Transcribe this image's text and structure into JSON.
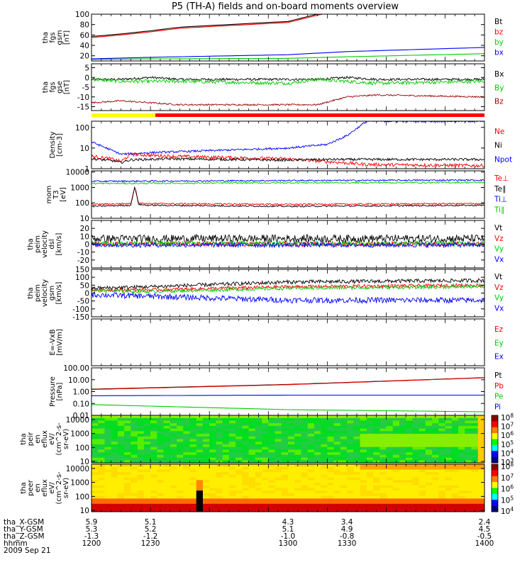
{
  "chart_data": {
    "type": "line",
    "title": "P5 (TH-A) fields and on-board moments overview",
    "panels": [
      {
        "id": "fgs_gsm",
        "ylabel": [
          "tha",
          "fgs",
          "gsm",
          "[nT]"
        ],
        "yscale": "linear",
        "ylim": [
          10,
          100
        ],
        "ticks": [
          "100",
          "80",
          "60",
          "40",
          "20"
        ],
        "tickvals": [
          100,
          80,
          60,
          40,
          20
        ],
        "series": [
          {
            "name": "Bt",
            "color": "#000000",
            "kind": "curve",
            "x": [
              1200,
              1215,
              1230,
              1245,
              1300,
              1315,
              1330
            ],
            "y": [
              57,
              62,
              68,
              75,
              86,
              100,
              112
            ]
          },
          {
            "name": "bz",
            "color": "#ff0000",
            "kind": "curve",
            "x": [
              1200,
              1215,
              1230,
              1245,
              1300,
              1315,
              1330
            ],
            "y": [
              55,
              60,
              66,
              73,
              84,
              98,
              110
            ]
          },
          {
            "name": "by",
            "color": "#00cc00",
            "kind": "curve",
            "x": [
              1200,
              1230,
              1300,
              1330,
              1400
            ],
            "y": [
              13,
              14,
              15,
              18,
              24
            ]
          },
          {
            "name": "bx",
            "color": "#0000ff",
            "kind": "curve",
            "x": [
              1200,
              1230,
              1300,
              1330,
              1400
            ],
            "y": [
              14,
              17,
              22,
              28,
              36
            ]
          }
        ]
      },
      {
        "id": "fgs_gse",
        "ylabel": [
          "tha",
          "fgs",
          "gse",
          "[nT]"
        ],
        "yscale": "linear",
        "ylim": [
          -17,
          7
        ],
        "ticks": [
          "5",
          "0",
          "-5",
          "-10",
          "-15"
        ],
        "tickvals": [
          5,
          0,
          -5,
          -10,
          -15
        ],
        "series": [
          {
            "name": "Bx",
            "color": "#000000",
            "kind": "noisy",
            "x": [
              1200,
              1215,
              1230,
              1245,
              1300,
              1315,
              1330,
              1345,
              1400
            ],
            "y": [
              -1,
              -1,
              0,
              -1,
              -1,
              -1,
              0,
              -1,
              -1
            ],
            "noise": 0.6
          },
          {
            "name": "By",
            "color": "#00cc00",
            "kind": "noisy",
            "x": [
              1200,
              1215,
              1230,
              1245,
              1300,
              1315,
              1330,
              1345,
              1400
            ],
            "y": [
              -1,
              -2,
              -2,
              -2,
              -3,
              -1,
              -2,
              -3,
              -2
            ],
            "noise": 0.9
          },
          {
            "name": "Bz",
            "color": "#990000",
            "kind": "noisy",
            "x": [
              1200,
              1215,
              1230,
              1245,
              1300,
              1315,
              1330,
              1345,
              1400
            ],
            "y": [
              -13,
              -12,
              -13,
              -14,
              -14,
              -14,
              -10,
              -9,
              -10
            ],
            "noise": 0.4
          }
        ]
      },
      {
        "id": "density",
        "ylabel": [
          "Density",
          "[cm-3]"
        ],
        "yscale": "log",
        "ylim": [
          1,
          200
        ],
        "ticks": [
          "100",
          "10",
          "1"
        ],
        "tickvals": [
          100,
          10,
          1
        ],
        "series": [
          {
            "name": "Ne",
            "color": "#ff0000",
            "kind": "noisy",
            "x": [
              1200,
              1210,
              1215,
              1220,
              1240,
              1300,
              1320,
              1340,
              1400
            ],
            "y": [
              4,
              3,
              2.2,
              5,
              4,
              3,
              2.2,
              1.6,
              1.4
            ],
            "noise": 0.08
          },
          {
            "name": "Ni",
            "color": "#000000",
            "kind": "noisy",
            "x": [
              1200,
              1210,
              1215,
              1220,
              1240,
              1300,
              1320,
              1340,
              1400
            ],
            "y": [
              3,
              2.5,
              2,
              2.7,
              3,
              2.6,
              2.8,
              2.8,
              2.8
            ],
            "noise": 0.06
          },
          {
            "name": "Npot",
            "color": "#0000ff",
            "kind": "noisy",
            "x": [
              1200,
              1210,
              1215,
              1230,
              1300,
              1320,
              1330,
              1340,
              1350,
              1400
            ],
            "y": [
              20,
              8,
              5,
              6,
              10,
              15,
              40,
              200,
              200,
              200
            ],
            "noise": 0.05
          }
        ]
      },
      {
        "id": "mom_temp",
        "ylabel": [
          "mom",
          "T3",
          "[eV]"
        ],
        "yscale": "log",
        "ylim": [
          10,
          12000
        ],
        "ticks": [
          "10000",
          "1000",
          "100",
          "10"
        ],
        "tickvals": [
          10000,
          1000,
          100,
          10
        ],
        "series": [
          {
            "name": "Te⊥",
            "color": "#ff0000",
            "kind": "noisy",
            "x": [
              1200,
              1220,
              1222,
              1224,
              1228,
              1300,
              1400
            ],
            "y": [
              80,
              90,
              1200,
              100,
              90,
              80,
              90
            ],
            "noise": 0.05
          },
          {
            "name": "Te∥",
            "color": "#000000",
            "kind": "noisy",
            "x": [
              1200,
              1220,
              1222,
              1224,
              1228,
              1300,
              1400
            ],
            "y": [
              60,
              70,
              1100,
              80,
              70,
              60,
              70
            ],
            "noise": 0.05
          },
          {
            "name": "Ti⊥",
            "color": "#0000ff",
            "kind": "noisy",
            "x": [
              1200,
              1300,
              1400
            ],
            "y": [
              2500,
              2800,
              3000
            ],
            "noise": 0.05
          },
          {
            "name": "Ti∥",
            "color": "#00cc00",
            "kind": "noisy",
            "x": [
              1200,
              1300,
              1400
            ],
            "y": [
              1800,
              2000,
              2100
            ],
            "noise": 0.05
          }
        ]
      },
      {
        "id": "peim_vel_dsl",
        "ylabel": [
          "tha",
          "peim",
          "velocity",
          "dsl",
          "[km/s]"
        ],
        "yscale": "linear",
        "ylim": [
          -30,
          30
        ],
        "ticks": [
          "20",
          "10",
          "0",
          "-10",
          "-20"
        ],
        "tickvals": [
          20,
          10,
          0,
          -10,
          -20
        ],
        "series": [
          {
            "name": "Vt",
            "color": "#000000",
            "kind": "noisy",
            "x": [
              1200,
              1400
            ],
            "y": [
              7,
              7
            ],
            "noise": 5
          },
          {
            "name": "Vz",
            "color": "#ff0000",
            "kind": "noisy",
            "x": [
              1200,
              1400
            ],
            "y": [
              0,
              0
            ],
            "noise": 3
          },
          {
            "name": "Vy",
            "color": "#00cc00",
            "kind": "noisy",
            "x": [
              1200,
              1400
            ],
            "y": [
              1,
              1
            ],
            "noise": 3
          },
          {
            "name": "Vx",
            "color": "#0000ff",
            "kind": "noisy",
            "x": [
              1200,
              1400
            ],
            "y": [
              -1,
              -1
            ],
            "noise": 3
          }
        ]
      },
      {
        "id": "peim_vel_gsm",
        "ylabel": [
          "tha",
          "peim",
          "velocity",
          "gsm",
          "[km/s]"
        ],
        "yscale": "linear",
        "ylim": [
          -150,
          150
        ],
        "ticks": [
          "150",
          "100",
          "50",
          "0",
          "-50",
          "-100",
          "-150"
        ],
        "tickvals": [
          150,
          100,
          50,
          0,
          -50,
          -100,
          -150
        ],
        "series": [
          {
            "name": "Vt",
            "color": "#000000",
            "kind": "noisy",
            "x": [
              1200,
              1230,
              1300,
              1400
            ],
            "y": [
              30,
              40,
              70,
              80
            ],
            "noise": 12
          },
          {
            "name": "Vz",
            "color": "#ff0000",
            "kind": "noisy",
            "x": [
              1200,
              1230,
              1300,
              1400
            ],
            "y": [
              20,
              20,
              40,
              50
            ],
            "noise": 10
          },
          {
            "name": "Vy",
            "color": "#00cc00",
            "kind": "noisy",
            "x": [
              1200,
              1230,
              1300,
              1400
            ],
            "y": [
              15,
              10,
              30,
              40
            ],
            "noise": 10
          },
          {
            "name": "Vx",
            "color": "#0000ff",
            "kind": "noisy",
            "x": [
              1200,
              1230,
              1300,
              1400
            ],
            "y": [
              -10,
              -20,
              -45,
              -45
            ],
            "noise": 18
          }
        ]
      },
      {
        "id": "e_vxb",
        "ylabel": [
          "E=-VxB",
          "[mV/m]"
        ],
        "yscale": "linear",
        "ylim": [
          0,
          1
        ],
        "ticks": [],
        "tickvals": [],
        "series": [
          {
            "name": "Ez",
            "color": "#ff0000",
            "kind": "none"
          },
          {
            "name": "Ey",
            "color": "#00cc00",
            "kind": "none"
          },
          {
            "name": "Ex",
            "color": "#0000ff",
            "kind": "none"
          }
        ]
      },
      {
        "id": "pressure",
        "ylabel": [
          "Pressure",
          "[nPa]"
        ],
        "yscale": "log",
        "ylim": [
          0.01,
          100
        ],
        "ticks": [
          "100.00",
          "10.00",
          "1.00",
          "0.10",
          "0.01"
        ],
        "tickvals": [
          100,
          10,
          1,
          0.1,
          0.01
        ],
        "series": [
          {
            "name": "Pt",
            "color": "#000000",
            "kind": "curve",
            "x": [
              1200,
              1300,
              1400
            ],
            "y": [
              1.6,
              4,
              15
            ]
          },
          {
            "name": "Pb",
            "color": "#ff0000",
            "kind": "curve",
            "x": [
              1200,
              1300,
              1400
            ],
            "y": [
              1.5,
              3.8,
              14.5
            ]
          },
          {
            "name": "Pe",
            "color": "#00cc00",
            "kind": "curve",
            "x": [
              1200,
              1300,
              1400
            ],
            "y": [
              0.08,
              0.03,
              0.02
            ]
          },
          {
            "name": "Pi",
            "color": "#0000ff",
            "kind": "curve",
            "x": [
              1200,
              1300,
              1400
            ],
            "y": [
              0.45,
              0.5,
              0.5
            ]
          }
        ]
      },
      {
        "id": "peir_spec",
        "type": "heatmap",
        "ylabel": [
          "tha",
          "peir",
          "en",
          "eflux",
          "eV/",
          "(cm^2-s-",
          "sr-eV)"
        ],
        "yscale": "log",
        "ylim": [
          8,
          20000
        ],
        "ticks": [
          "10000",
          "1000",
          "100",
          "10"
        ],
        "tickvals": [
          10000,
          1000,
          100,
          10
        ],
        "colorbar": {
          "labels": [
            "10^8",
            "10^7",
            "10^6",
            "10^5",
            "10^4",
            "10^3"
          ]
        }
      },
      {
        "id": "peer_spec",
        "type": "heatmap",
        "ylabel": [
          "tha",
          "peer",
          "en",
          "eflux",
          "eV/",
          "(cm^2-s-",
          "sr-eV)"
        ],
        "yscale": "log",
        "ylim": [
          8,
          20000
        ],
        "ticks": [
          "10000",
          "1000",
          "100",
          "10"
        ],
        "tickvals": [
          10000,
          1000,
          100,
          10
        ],
        "colorbar": {
          "labels": [
            "10^8",
            "10^7",
            "10^6",
            "10^5",
            "10^4"
          ]
        }
      }
    ],
    "xaxis": {
      "range": [
        1200,
        1400
      ],
      "ticks": [
        1200,
        1230,
        1300,
        1330,
        1400
      ]
    },
    "ephemeris": [
      {
        "label": "tha_X-GSM",
        "values": [
          "5.9",
          "5.1",
          "4.3",
          "3.4",
          "2.4"
        ]
      },
      {
        "label": "tha_Y-GSM",
        "values": [
          "5.3",
          "5.2",
          "5.1",
          "4.9",
          "4.5"
        ]
      },
      {
        "label": "tha_Z-GSM",
        "values": [
          "-1.3",
          "-1.2",
          "-1.0",
          "-0.8",
          "-0.5"
        ]
      },
      {
        "label": "hhmm",
        "values": [
          "1200",
          "1230",
          "1300",
          "1330",
          "1400"
        ]
      }
    ],
    "date": "2009 Sep 21"
  }
}
